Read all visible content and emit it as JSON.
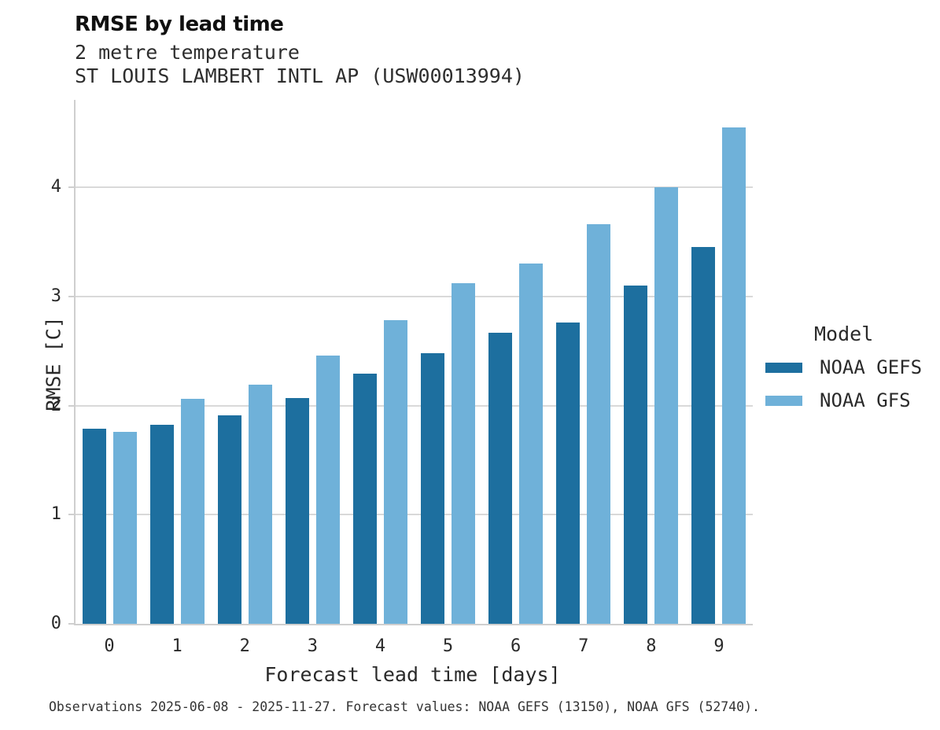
{
  "chart_data": {
    "type": "bar",
    "title": "RMSE by lead time",
    "subtitle": "2 metre temperature",
    "subtitle2": "ST LOUIS LAMBERT INTL AP (USW00013994)",
    "categories": [
      "0",
      "1",
      "2",
      "3",
      "4",
      "5",
      "6",
      "7",
      "8",
      "9"
    ],
    "series": [
      {
        "name": "NOAA GEFS",
        "color": "#1d6f9f",
        "values": [
          1.79,
          1.82,
          1.91,
          2.07,
          2.29,
          2.48,
          2.67,
          2.76,
          3.1,
          3.45
        ]
      },
      {
        "name": "NOAA GFS",
        "color": "#6fb1d9",
        "values": [
          1.76,
          2.06,
          2.19,
          2.46,
          2.78,
          3.12,
          3.3,
          3.66,
          4.0,
          4.55
        ]
      }
    ],
    "xlabel": "Forecast lead time [days]",
    "ylabel": "RMSE [C]",
    "yticks": [
      0,
      1,
      2,
      3,
      4
    ],
    "ylim": [
      0,
      4.8
    ],
    "grid": "horizontal",
    "legend_title": "Model",
    "legend_position": "right",
    "caption": "Observations 2025-06-08 - 2025-11-27. Forecast values: NOAA GEFS (13150), NOAA GFS (52740)."
  },
  "colors": {
    "gefs": "#1d6f9f",
    "gfs": "#6fb1d9",
    "gridline": "#d9d9d9",
    "axis": "#cfcfcf"
  }
}
